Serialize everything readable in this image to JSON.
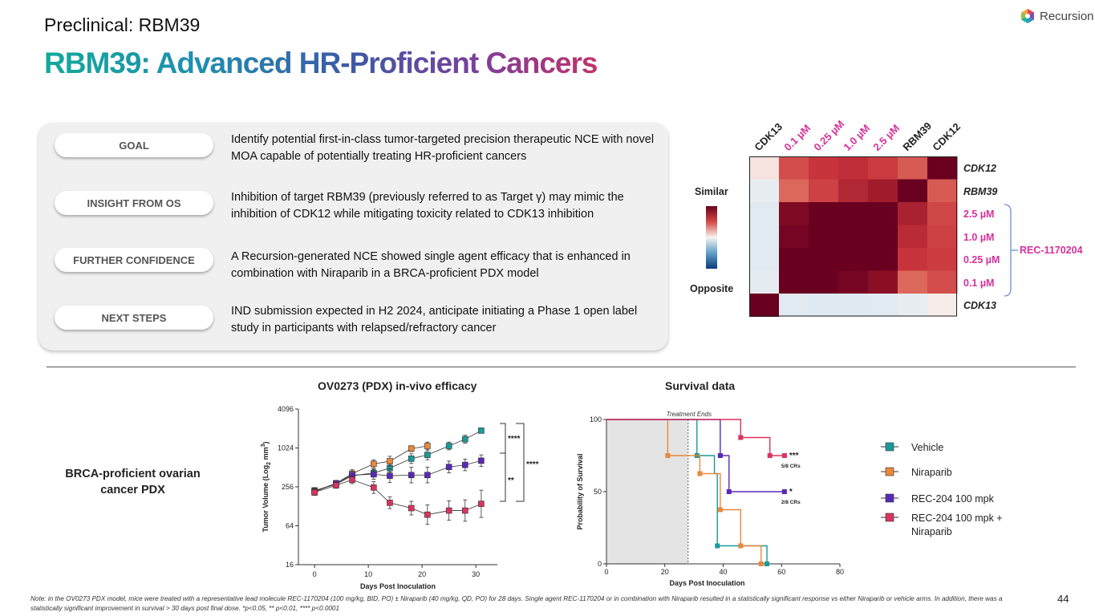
{
  "header": {
    "subtitle": "Preclinical: RBM39",
    "title": "RBM39: Advanced HR-Proficient Cancers",
    "logo_text": "Recursion",
    "logo_icon": "hexagon-logo-icon"
  },
  "rows": [
    {
      "label": "GOAL",
      "text": "Identify potential first-in-class tumor-targeted precision therapeutic NCE with novel MOA capable of potentially treating HR-proficient cancers"
    },
    {
      "label": "INSIGHT FROM OS",
      "text": "Inhibition of target RBM39 (previously referred to as Target γ) may mimic the inhibition of CDK12 while mitigating toxicity related to CDK13 inhibition"
    },
    {
      "label": "FURTHER CONFIDENCE",
      "text": "A Recursion-generated NCE showed single agent efficacy that is enhanced in combination with Niraparib in a BRCA-proficient PDX model"
    },
    {
      "label": "NEXT STEPS",
      "text": "IND submission expected in H2 2024, anticipate initiating a Phase 1 open label study in participants with relapsed/refractory cancer"
    }
  ],
  "heatmap": {
    "columns": [
      "CDK13",
      "0.1 µM",
      "0.25 µM",
      "1.0 µM",
      "2.5 µM",
      "RBM39",
      "CDK12"
    ],
    "rows": [
      "CDK12",
      "RBM39",
      "2.5 µM",
      "1.0 µM",
      "0.25 µM",
      "0.1 µM",
      "CDK13"
    ],
    "row_colors": [
      "#222222",
      "#222222",
      "#d6309a",
      "#d6309a",
      "#d6309a",
      "#d6309a",
      "#222222"
    ],
    "col_colors": [
      "#222222",
      "#d6309a",
      "#d6309a",
      "#d6309a",
      "#d6309a",
      "#222222",
      "#222222"
    ],
    "scale_top": "Similar",
    "scale_bottom": "Opposite",
    "group_label": "REC-1170204",
    "group_color": "#d6309a",
    "values": [
      [
        0.05,
        0.55,
        0.65,
        0.68,
        0.62,
        0.5,
        1.0
      ],
      [
        -0.08,
        0.45,
        0.6,
        0.72,
        0.78,
        1.0,
        0.5
      ],
      [
        -0.12,
        0.9,
        1.0,
        1.0,
        1.0,
        0.75,
        0.58
      ],
      [
        -0.12,
        0.95,
        1.0,
        1.0,
        1.0,
        0.7,
        0.6
      ],
      [
        -0.12,
        1.0,
        1.0,
        1.0,
        1.0,
        0.65,
        0.62
      ],
      [
        -0.1,
        1.0,
        1.0,
        0.95,
        0.85,
        0.45,
        0.55
      ],
      [
        1.0,
        -0.12,
        -0.13,
        -0.13,
        -0.12,
        -0.08,
        0.02
      ]
    ]
  },
  "efficacy": {
    "title": "OV0273 (PDX) in-vivo efficacy",
    "section_label": "BRCA-proficient ovarian cancer PDX",
    "chart_data": {
      "type": "line",
      "title": "OV0273 (PDX) in-vivo efficacy",
      "xlabel": "Days Post Inoculation",
      "ylabel": "Tumor Volume (Log2 mm3)",
      "ylabel_main": "Tumor Volume  (Log",
      "ylabel_sub": "2",
      "ylabel_unit": " mm",
      "ylabel_sup": "3",
      "ylabel_close": ")",
      "xlim": [
        -3,
        34
      ],
      "xticks": [
        0,
        10,
        20,
        30
      ],
      "yticks": [
        16,
        64,
        256,
        1024,
        4096
      ],
      "ylog2": true,
      "series": [
        {
          "name": "Vehicle",
          "color": "#1a9a9a",
          "x": [
            0,
            4,
            7,
            11,
            14,
            18,
            21,
            25,
            28,
            31
          ],
          "y": [
            225,
            280,
            380,
            420,
            500,
            700,
            800,
            1100,
            1400,
            1900
          ],
          "err": [
            0.15,
            0.12,
            0.15,
            0.2,
            0.2,
            0.25,
            0.25,
            0.2,
            0.2,
            0.12
          ]
        },
        {
          "name": "Niraparib",
          "color": "#e8883a",
          "x": [
            0,
            4,
            7,
            11,
            14,
            18,
            21
          ],
          "y": [
            220,
            290,
            410,
            580,
            640,
            1000,
            1100
          ],
          "err": [
            0.15,
            0.15,
            0.2,
            0.2,
            0.25,
            0.15,
            0.2
          ]
        },
        {
          "name": "REC-204 100 mpk",
          "color": "#5a28b8",
          "x": [
            0,
            4,
            7,
            11,
            14,
            18,
            21,
            25,
            28,
            31
          ],
          "y": [
            215,
            290,
            390,
            400,
            380,
            390,
            390,
            520,
            560,
            650
          ],
          "err": [
            0.15,
            0.15,
            0.2,
            0.25,
            0.35,
            0.4,
            0.4,
            0.3,
            0.3,
            0.3
          ]
        },
        {
          "name": "REC-204 100 mpk + Niraparib",
          "color": "#d8345f",
          "x": [
            0,
            4,
            7,
            11,
            14,
            18,
            21,
            25,
            28,
            31
          ],
          "y": [
            210,
            270,
            330,
            250,
            145,
            120,
            95,
            110,
            110,
            140
          ],
          "err": [
            0.15,
            0.15,
            0.2,
            0.3,
            0.3,
            0.35,
            0.5,
            0.5,
            0.55,
            0.7
          ]
        }
      ],
      "annotations": [
        "****",
        "**",
        "****"
      ]
    }
  },
  "survival": {
    "title": "Survival data",
    "chart_data": {
      "type": "line",
      "title": "Survival data",
      "xlabel": "Days Post Inoculation",
      "ylabel": "Probability of Survival",
      "xlim": [
        0,
        80
      ],
      "ylim": [
        0,
        100
      ],
      "xticks": [
        0,
        20,
        40,
        60,
        80
      ],
      "yticks": [
        0,
        50,
        100
      ],
      "treatment_end_day": 28,
      "treatment_label": "Treatment Ends",
      "series": [
        {
          "name": "Vehicle",
          "color": "#1a9a9a",
          "steps": [
            [
              0,
              100
            ],
            [
              31,
              100
            ],
            [
              31,
              75
            ],
            [
              37,
              75
            ],
            [
              37,
              62.5
            ],
            [
              38,
              62.5
            ],
            [
              38,
              12.5
            ],
            [
              55,
              12.5
            ],
            [
              55,
              0
            ]
          ],
          "markers": [
            [
              31,
              75
            ],
            [
              38,
              12.5
            ],
            [
              55,
              0
            ]
          ]
        },
        {
          "name": "Niraparib",
          "color": "#e8883a",
          "steps": [
            [
              0,
              100
            ],
            [
              21,
              100
            ],
            [
              21,
              75
            ],
            [
              32,
              75
            ],
            [
              32,
              62.5
            ],
            [
              39,
              62.5
            ],
            [
              39,
              37.5
            ],
            [
              46,
              37.5
            ],
            [
              46,
              12.5
            ],
            [
              53,
              12.5
            ],
            [
              53,
              0
            ]
          ],
          "markers": [
            [
              21,
              75
            ],
            [
              32,
              62.5
            ],
            [
              39,
              37.5
            ],
            [
              46,
              12.5
            ],
            [
              53,
              0
            ]
          ]
        },
        {
          "name": "REC-204 100 mpk",
          "color": "#5a28b8",
          "steps": [
            [
              0,
              100
            ],
            [
              39,
              100
            ],
            [
              39,
              75
            ],
            [
              42,
              75
            ],
            [
              42,
              50
            ],
            [
              61,
              50
            ]
          ],
          "markers": [
            [
              39,
              75
            ],
            [
              42,
              50
            ],
            [
              61,
              50
            ]
          ]
        },
        {
          "name": "REC-204 100 mpk + Niraparib",
          "color": "#d8345f",
          "steps": [
            [
              0,
              100
            ],
            [
              46,
              100
            ],
            [
              46,
              87.5
            ],
            [
              56,
              87.5
            ],
            [
              56,
              75
            ],
            [
              61,
              75
            ]
          ],
          "markers": [
            [
              46,
              87.5
            ],
            [
              56,
              75
            ],
            [
              61,
              75
            ]
          ]
        }
      ],
      "annotations": [
        {
          "text": "***",
          "sub": "5/8 CRs",
          "series": 3
        },
        {
          "text": "*",
          "sub": "2/8 CRs",
          "series": 2
        }
      ]
    }
  },
  "legend": [
    {
      "label": "Vehicle",
      "color": "#1a9a9a"
    },
    {
      "label": "Niraparib",
      "color": "#e8883a"
    },
    {
      "label": "REC-204 100 mpk",
      "color": "#5a28b8"
    },
    {
      "label": "REC-204 100 mpk + Niraparib",
      "color": "#d8345f"
    }
  ],
  "footer": {
    "note": "Note: in the OV0273 PDX model, mice were treated with a representative lead molecule REC-1170204 (100 mg/kg, BID, PO) ± Niraparib (40 mg/kg, QD, PO) for 28 days. Single agent REC-1170204 or in combination with Niraparib resulted in a statistically significant response vs either Niraparib or vehicle arms. In addition, there was a statistically significant improvement in survival > 30 days post final dose. *p<0.05, ** p<0.01, **** p<0.0001",
    "page_number": "44"
  }
}
